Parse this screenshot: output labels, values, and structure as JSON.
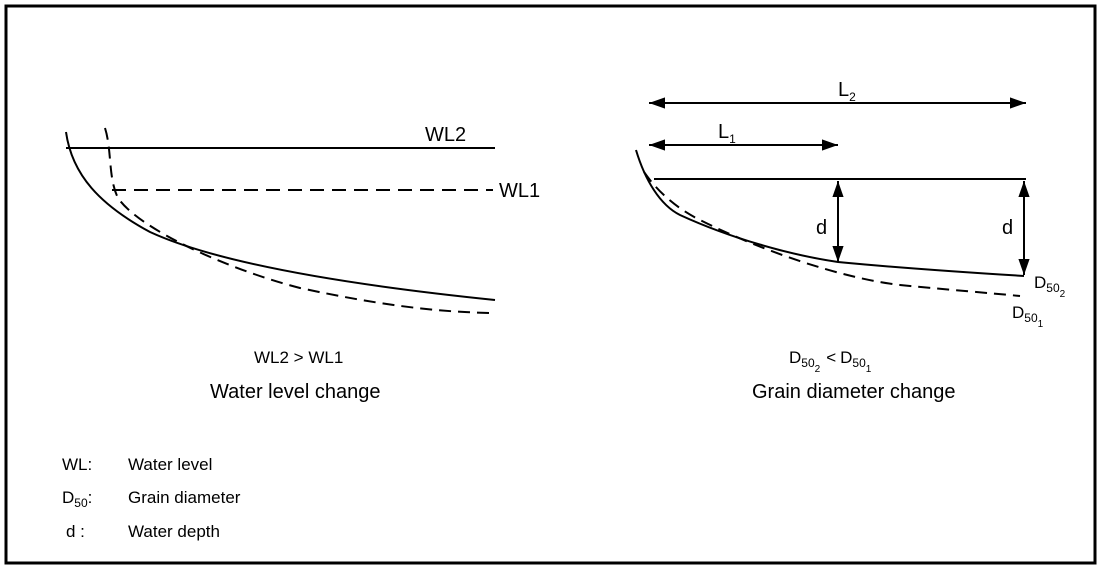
{
  "left_panel": {
    "wl2_label": "WL2",
    "wl1_label": "WL1",
    "comparison": "WL2 > WL1",
    "caption": "Water level change"
  },
  "right_panel": {
    "l2_main": "L",
    "l2_sub": "2",
    "l1_main": "L",
    "l1_sub": "1",
    "depth_label_1": "d",
    "depth_label_2": "d",
    "d50_2": {
      "main": "D",
      "sub": "50",
      "subsub": "2"
    },
    "d50_1": {
      "main": "D",
      "sub": "50",
      "subsub": "1"
    },
    "comparison": {
      "left_main": "D",
      "left_sub": "50",
      "left_subsub": "2",
      "op": "<",
      "right_main": "D",
      "right_sub": "50",
      "right_subsub": "1"
    },
    "caption": "Grain  diameter change"
  },
  "legend": {
    "items": [
      {
        "symbol": "WL:",
        "text": "Water level"
      },
      {
        "symbol_main": "D",
        "symbol_sub": "50",
        "symbol_tail": ":",
        "text": "Grain  diameter"
      },
      {
        "symbol": "d  :",
        "text": "Water depth"
      }
    ]
  },
  "colors": {
    "stroke": "#000000",
    "background": "#ffffff"
  }
}
